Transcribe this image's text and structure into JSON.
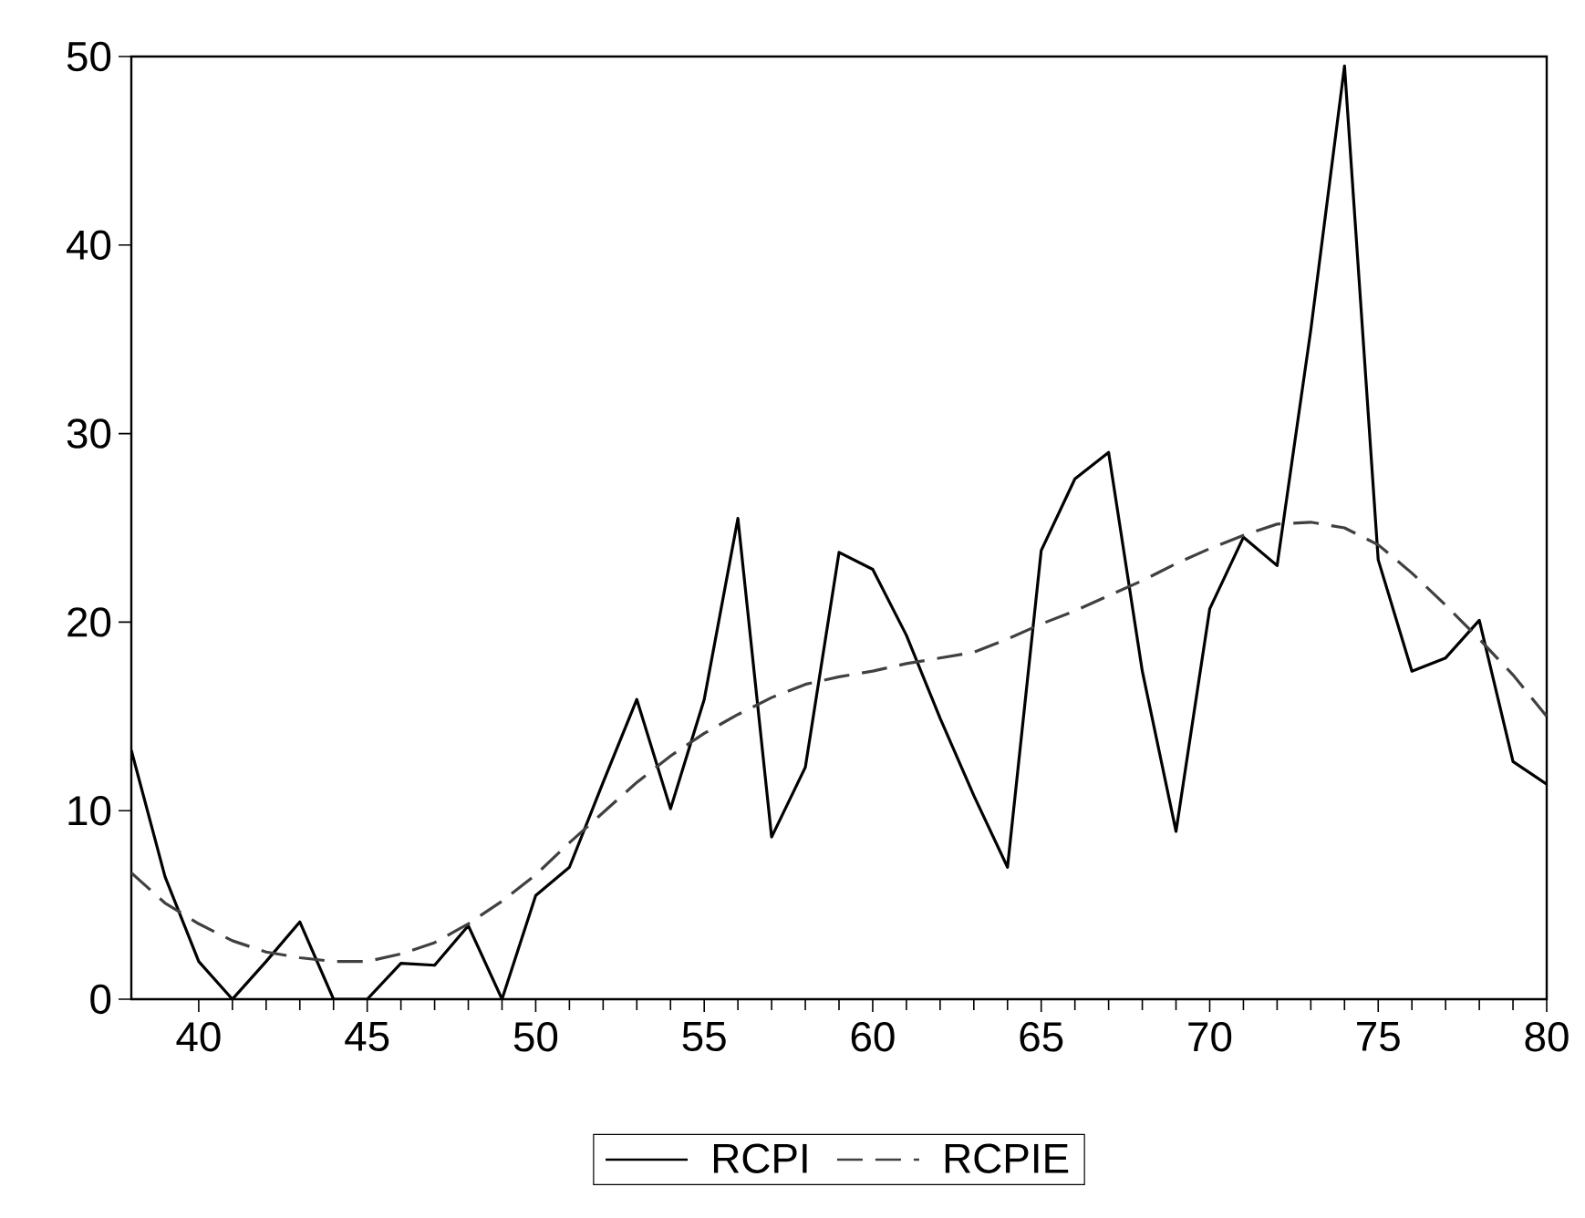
{
  "chart_data": {
    "type": "line",
    "xlim": [
      38,
      80
    ],
    "ylim": [
      0,
      50
    ],
    "xticks": [
      40,
      45,
      50,
      55,
      60,
      65,
      70,
      75,
      80
    ],
    "yticks": [
      0,
      10,
      20,
      30,
      40,
      50
    ],
    "legend": "bottom",
    "series": [
      {
        "name": "RCPI",
        "color": "#000000",
        "line_style": "solid",
        "x": [
          38,
          39,
          40,
          41,
          42,
          43,
          44,
          45,
          46,
          47,
          48,
          49,
          50,
          51,
          52,
          53,
          54,
          55,
          56,
          57,
          58,
          59,
          60,
          61,
          62,
          63,
          64,
          65,
          66,
          67,
          68,
          69,
          70,
          71,
          72,
          73,
          74,
          75,
          76,
          77,
          78,
          79,
          80
        ],
        "values": [
          13.2,
          6.5,
          2.0,
          0,
          2.0,
          4.1,
          0,
          0,
          1.9,
          1.8,
          3.9,
          0,
          5.5,
          7.0,
          11.5,
          15.9,
          10.1,
          15.9,
          25.5,
          8.6,
          12.3,
          23.7,
          22.8,
          19.3,
          14.9,
          10.8,
          7.0,
          23.8,
          27.6,
          29.0,
          17.4,
          8.9,
          20.7,
          24.5,
          23.0,
          35.5,
          49.5,
          23.3,
          17.4,
          18.1,
          20.1,
          12.6,
          11.4
        ]
      },
      {
        "name": "RCPIE",
        "color": "#404040",
        "line_style": "dashed",
        "x": [
          38,
          39,
          40,
          41,
          42,
          43,
          44,
          45,
          46,
          47,
          48,
          49,
          50,
          51,
          52,
          53,
          54,
          55,
          56,
          57,
          58,
          59,
          60,
          61,
          62,
          63,
          64,
          65,
          66,
          67,
          68,
          69,
          70,
          71,
          72,
          73,
          74,
          75,
          76,
          77,
          78,
          79,
          80
        ],
        "values": [
          6.7,
          5.1,
          4.0,
          3.1,
          2.5,
          2.2,
          2.0,
          2.0,
          2.4,
          3.0,
          4.0,
          5.2,
          6.6,
          8.3,
          9.9,
          11.5,
          12.9,
          14.1,
          15.1,
          16.0,
          16.7,
          17.1,
          17.4,
          17.8,
          18.1,
          18.4,
          19.1,
          19.9,
          20.6,
          21.4,
          22.2,
          23.1,
          23.9,
          24.6,
          25.2,
          25.3,
          25.0,
          24.1,
          22.6,
          20.9,
          19.1,
          17.2,
          15.0
        ]
      }
    ]
  }
}
